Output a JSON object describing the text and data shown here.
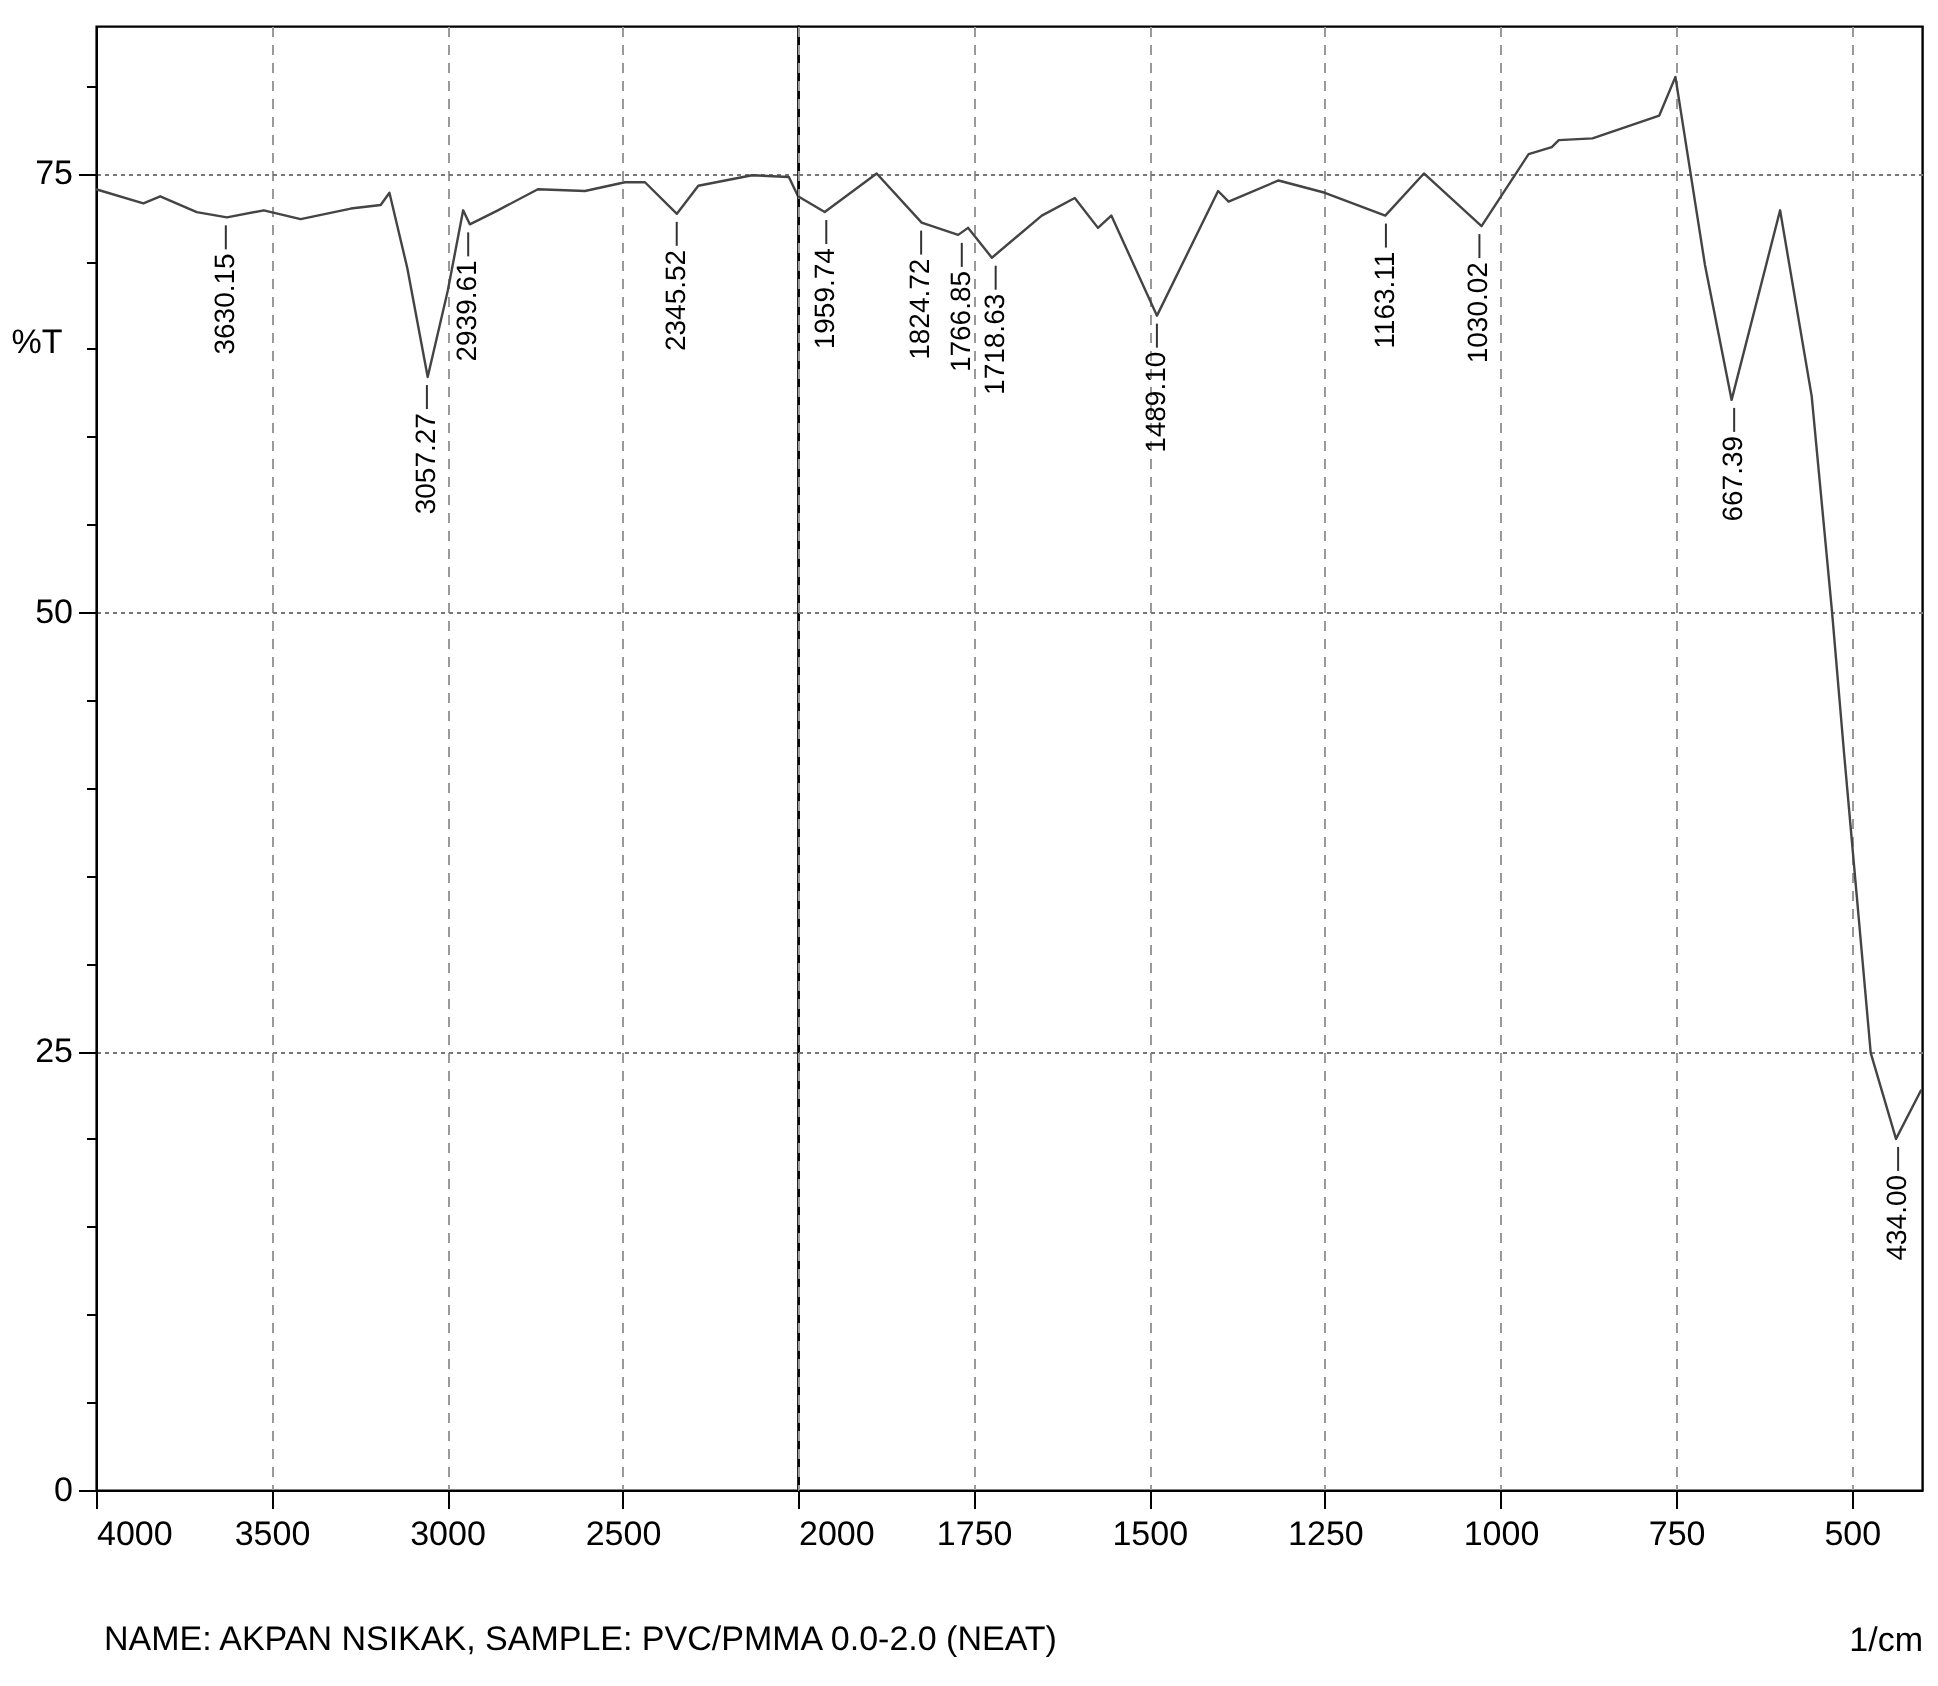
{
  "chart_data": [
    {
      "type": "line",
      "ylabel": "%T",
      "annotations": [
        "NAME: AKPAN NSIKAK,   SAMPLE: PVC/PMMA 0.0-2.0 (NEAT)",
        {
          "text": "3630.15",
          "x": 3630.15,
          "y": 72.5
        },
        {
          "text": "3057.27",
          "x": 3057.27,
          "y": 63.4
        },
        {
          "text": "2939.61",
          "x": 2939.61,
          "y": 72.1
        },
        {
          "text": "2345.52",
          "x": 2345.52,
          "y": 72.7
        }
      ],
      "x": [
        4000,
        3865,
        3817,
        3713,
        3627,
        3522,
        3417,
        3274,
        3189,
        3164,
        3113,
        3055,
        2998,
        2954,
        2935,
        2855,
        2741,
        2607,
        2493,
        2436,
        2345,
        2284,
        2131,
        2026,
        2000
      ],
      "series": [
        {
          "color": "#444444",
          "values": [
            74.1,
            73.3,
            73.7,
            72.8,
            72.5,
            72.9,
            72.4,
            73.0,
            73.2,
            73.9,
            69.6,
            63.4,
            68.3,
            72.9,
            72.1,
            72.9,
            74.1,
            74.0,
            74.5,
            74.5,
            72.7,
            74.3,
            74.9,
            74.8,
            73.7
          ]
        }
      ],
      "xlim": [
        4000,
        2000
      ],
      "ylim": [
        0,
        83.4
      ],
      "xticks": [
        4000,
        3500,
        3000,
        2500
      ],
      "yticks": [
        0,
        {
          "value": 5,
          "label": null
        },
        {
          "value": 10,
          "label": null
        },
        {
          "value": 15,
          "label": null
        },
        {
          "value": 20,
          "label": null
        },
        25,
        {
          "value": 30,
          "label": null
        },
        {
          "value": 35,
          "label": null
        },
        {
          "value": 40,
          "label": null
        },
        {
          "value": 45,
          "label": null
        },
        50,
        {
          "value": 55,
          "label": null
        },
        {
          "value": 60,
          "label": null
        },
        {
          "value": 65,
          "label": null
        },
        {
          "value": 70,
          "label": null
        },
        75,
        {
          "value": 80,
          "label": null
        }
      ],
      "grid": true,
      "line_style": "solid"
    },
    {
      "type": "line",
      "xlabel": "1/cm",
      "annotations": [
        {
          "text": "1959.74",
          "x": 1959.74,
          "y": 72.8
        },
        {
          "text": "1824.72",
          "x": 1824.72,
          "y": 72.2
        },
        {
          "text": "1766.85",
          "x": 1766.85,
          "y": 71.5
        },
        {
          "text": "1718.63",
          "x": 1718.63,
          "y": 70.2
        },
        {
          "text": "1489.10",
          "x": 1489.1,
          "y": 66.9
        },
        {
          "text": "1163.11",
          "x": 1163.11,
          "y": 72.6
        },
        {
          "text": "1030.02",
          "x": 1030.02,
          "y": 72.0
        },
        {
          "text": "667.39",
          "x": 667.39,
          "y": 62.1
        },
        {
          "text": "434.00",
          "x": 434.0,
          "y": 20.0
        }
      ],
      "x": [
        2000,
        1962,
        1888,
        1824,
        1772,
        1758,
        1724,
        1653,
        1606,
        1573,
        1554,
        1489,
        1402,
        1387,
        1316,
        1250,
        1164,
        1109,
        1027,
        960,
        927,
        917,
        869,
        774,
        751,
        709,
        671,
        602,
        557,
        528,
        511,
        473,
        437,
        401
      ],
      "series": [
        {
          "color": "#444444",
          "values": [
            73.7,
            72.8,
            75.0,
            72.2,
            71.5,
            71.9,
            70.2,
            72.6,
            73.6,
            71.9,
            72.6,
            66.9,
            74.0,
            73.4,
            74.6,
            73.9,
            72.6,
            75.0,
            72.0,
            76.1,
            76.5,
            76.9,
            77.0,
            78.3,
            80.5,
            69.8,
            62.1,
            72.9,
            62.3,
            50.0,
            42.0,
            24.9,
            20.0,
            22.8
          ]
        }
      ],
      "xlim": [
        2000,
        400
      ],
      "ylim": [
        0,
        83.4
      ],
      "xticks": [
        2000,
        1750,
        1500,
        1250,
        1000,
        750,
        500
      ],
      "yticks": [
        0,
        25,
        50,
        75
      ],
      "tick_labels": "x",
      "grid": true,
      "line_style": "solid"
    }
  ]
}
